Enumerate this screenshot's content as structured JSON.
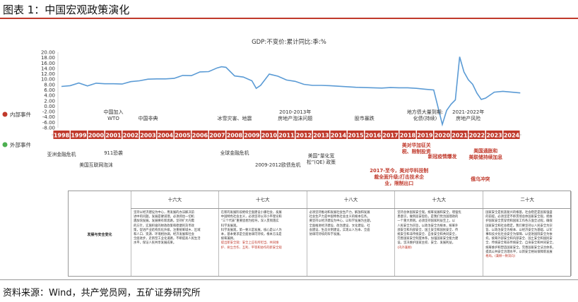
{
  "figure_title": "图表 1：中国宏观政策演化",
  "source": "资料来源：Wind，共产党员网，五矿证券研究所",
  "colors": {
    "line": "#5b9bd5",
    "year_box": "#c0392b",
    "internal": "#c0392b",
    "external": "#4caf50",
    "red_text": "#c0392b"
  },
  "chart_data": {
    "type": "line",
    "title": "GDP:不变价:累计同比:季:%",
    "ylim": [
      -8,
      20
    ],
    "yticks": [
      "20.00",
      "18.00",
      "16.00",
      "14.00",
      "12.00",
      "10.00",
      "8.00",
      "6.00",
      "4.00",
      "2.00",
      "0.00",
      "-2.00",
      "-4.00",
      "-6.00",
      "-8.00"
    ],
    "years": [
      "1998",
      "1999",
      "2000",
      "2001",
      "2002",
      "2003",
      "2004",
      "2005",
      "2006",
      "2007",
      "2008",
      "2009",
      "2010",
      "2011",
      "2012",
      "2013",
      "2014",
      "2015",
      "2016",
      "2017",
      "2018",
      "2019",
      "2020",
      "2021",
      "2022",
      "2023",
      "2024"
    ],
    "series": [
      {
        "x": [
          1998,
          1998.5,
          1999,
          1999.5,
          2000,
          2000.5,
          2001,
          2001.5,
          2002,
          2002.5,
          2003,
          2003.5,
          2004,
          2004.5,
          2005,
          2005.5,
          2006,
          2006.5,
          2007,
          2007.25,
          2007.5,
          2008,
          2008.5,
          2009,
          2009.25,
          2009.5,
          2010,
          2010.5,
          2011,
          2011.5,
          2012,
          2012.5,
          2013,
          2013.5,
          2014,
          2014.5,
          2015,
          2015.5,
          2016,
          2016.5,
          2017,
          2017.5,
          2018,
          2018.5,
          2019,
          2019.5,
          2020,
          2020.25,
          2020.5,
          2020.75,
          2021,
          2021.25,
          2021.5,
          2021.75,
          2022,
          2022.25,
          2022.5,
          2023,
          2023.5,
          2024,
          2024.5
        ],
        "y": [
          7.3,
          7.6,
          8.6,
          7.5,
          8.5,
          8.3,
          8.3,
          8.2,
          9.1,
          9.4,
          10.0,
          10.1,
          10.1,
          10.3,
          11.4,
          11.3,
          12.7,
          12.8,
          14.2,
          14.6,
          14.4,
          11.2,
          10.8,
          9.4,
          6.6,
          7.7,
          11.9,
          11.1,
          9.7,
          9.2,
          8.1,
          7.7,
          7.7,
          7.6,
          7.4,
          7.2,
          7.0,
          6.9,
          6.8,
          6.7,
          6.9,
          6.8,
          6.8,
          6.6,
          6.3,
          6.0,
          -6.8,
          -1.6,
          0.7,
          2.3,
          18.3,
          12.7,
          9.8,
          8.1,
          4.8,
          2.5,
          3.0,
          5.2,
          5.5,
          5.2,
          4.9
        ]
      }
    ]
  },
  "timeline": {
    "internal_label": "内部事件",
    "external_label": "外部事件",
    "internal_events": [
      {
        "year": 2001,
        "lines": [
          "中国加入",
          "WTO"
        ]
      },
      {
        "year": 2003,
        "lines": [
          "中国非典"
        ]
      },
      {
        "year": 2008,
        "lines": [
          "冰雪灾害、地震"
        ]
      },
      {
        "year": 2011.5,
        "lines": [
          "2010-2013年",
          "房地产泡沫问题"
        ]
      },
      {
        "year": 2015.5,
        "lines": [
          "股市暴跌"
        ]
      },
      {
        "year": 2019,
        "lines": [
          "地方债大量到期:",
          "化债(持续)"
        ]
      },
      {
        "year": 2021.5,
        "lines": [
          "2021-2022年",
          "房地产风险"
        ]
      }
    ],
    "external_events": [
      {
        "year": 1998,
        "lines": [
          "亚洲金融危机"
        ],
        "red": false
      },
      {
        "year": 2000,
        "lines": [
          "美国互联网泡沫"
        ],
        "red": false
      },
      {
        "year": 2001,
        "lines": [
          "911恐袭"
        ],
        "red": false
      },
      {
        "year": 2008,
        "lines": [
          "全球金融危机"
        ],
        "red": false
      },
      {
        "year": 2010.5,
        "lines": [
          "2009-2012欧债危机"
        ],
        "red": false
      },
      {
        "year": 2013,
        "lines": [
          "美国“量化宽",
          "松”(QE) 政策"
        ],
        "red": false
      },
      {
        "year": 2018.5,
        "lines": [
          "美对华加征关",
          "税、限制投资"
        ],
        "red": true
      },
      {
        "year": 2017.5,
        "lines": [
          "2017-至今，美对华科技制",
          "裁全面升级;打击技术企",
          "业，限制出口"
        ],
        "red": true
      },
      {
        "year": 2020,
        "lines": [
          "新冠疫情爆发"
        ],
        "red": true
      },
      {
        "year": 2022.5,
        "lines": [
          "美国通胀和",
          "美联储持续加息"
        ],
        "red": true
      },
      {
        "year": 2022.2,
        "lines": [
          "俄乌冲突"
        ],
        "red": true
      }
    ]
  },
  "policy_table": {
    "row_label": "发展与安全变化",
    "columns": [
      {
        "header": "十六大",
        "lines": [
          "坚持以经济建设为中心，用发展的办法解决前",
          "进中的问题。发展是硬道理，必须抓住一切机",
          "遇加快发展。发展要有新思路。坚持扩大内需",
          "的方针，实施积极的财政政策和稳健的货币政",
          "策，促进产业结构优化升级，注重统筹城乡、区域",
          "和人口、资源、环境相协调。经济发展和社会",
          "全面进步，走新型工业化道路，不断提高人民生活",
          "水平，保证人民共享发展成果。"
        ],
        "red": []
      },
      {
        "header": "十七大",
        "lines": [
          "在新的发展阶段继续全面建设小康社会，发展",
          "中国特色社会主义，必须坚持以邓小平理论和",
          "“三个代表”重要思想为指导，深入贯彻落实",
          "科学发展观。",
          "科学发展观，第一要义是发展，核心是以人为",
          "本，基本要求是全面协调可持续，根本方法是",
          "统筹兼顾。",
          "提出新安全观：安全上应有所担当、共同维",
          "护、树立合作、互利、平等和协作的新安全观"
        ],
        "red": [
          7,
          8
        ]
      },
      {
        "header": "十八大",
        "lines": [
          "必须坚持推动和发展社会生产力，解放和发展",
          "社会生产力是中国特色社会主义的根本任务。",
          "要坚持以经济建设为中心，以科学发展为主题，",
          "全面推进经济建设、政治建设、文化建设、社",
          "会建设、生态文明建设，实现以人为本、全面",
          "协调可持续的科学发展。"
        ],
        "red": []
      },
      {
        "header": "十九大",
        "lines": [
          "坚持总体国家安全观。统筹发展和安全，增强忧",
          "患意识，做到居安思危，是我们党治国理政的",
          "一个重大原则。必须坚持国家利益至上，以",
          "人民安全为宗旨，以政治安全为根本，统筹外",
          "部安全和内部安全、国土安全和国民安全、传",
          "统安全和非传统安全、自身安全和共同安全，",
          "完善国家安全制度体系，加强国家安全能力建",
          "设，坚决维护国家主权、安全、发展利益。",
          "(内外兼顾)"
        ],
        "red": [
          8
        ]
      },
      {
        "header": "二十大",
        "lines": [
          "国家安全是民族复兴的根基，社会稳定是国家强盛",
          "的前提。必须坚定不移贯彻总体国家安全观，把维",
          "护国家安全贯穿党和国家工作各方面全过程，确保",
          "国家安全和社会稳定。我们要坚持以人民安全为宗",
          "旨、以政治安全为根本、以经济安全为基础、以军",
          "事科技文化社会安全为保障、以促进国际安全为依",
          "托，统筹外部安全和内部安全、国土安全和国民安",
          "全、传统安全和非传统安全、自身安全和共同安全，",
          "统筹维护和塑造国家安全。完善国家安全法治体系，",
          "提高公共安全治理水平，以新安全格局保障新发展",
          "格局。(兼顾一致双向)"
        ],
        "red": [
          10
        ]
      }
    ]
  }
}
